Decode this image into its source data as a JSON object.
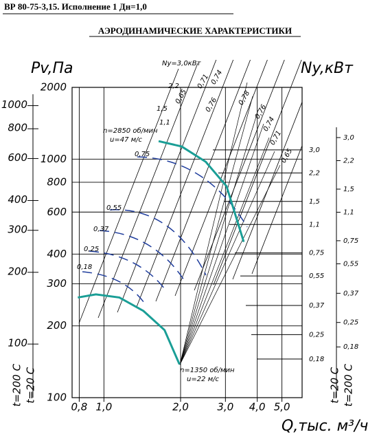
{
  "header": {
    "title": "ВР 80-75-3,15. Исполнение 1 Дн=1,0",
    "subtitle": "АЭРОДИНАМИЧЕСКИЕ ХАРАКТЕРИСТИКИ"
  },
  "chart_data": {
    "type": "line",
    "x_label": "Q,тыс. м³/ч",
    "y_label": "Pv,Па",
    "y2_label": "Ny,кВт",
    "temp_labels": [
      "t=200 C",
      "t=20 C"
    ],
    "xscale": "log",
    "yscale": "log",
    "grid": true,
    "xlim": [
      0.75,
      6
    ],
    "xticks": [
      {
        "value": 0.8,
        "label": "0,8"
      },
      {
        "value": 1.0,
        "label": "1,0"
      },
      {
        "value": 2.0,
        "label": "2,0"
      },
      {
        "value": 3.0,
        "label": "3,0"
      },
      {
        "value": 4.0,
        "label": "4,0"
      },
      {
        "value": 5.0,
        "label": "5,0"
      }
    ],
    "ylim": [
      100,
      2000
    ],
    "yticks": [
      100,
      200,
      300,
      400,
      600,
      800,
      1000,
      2000
    ],
    "y2lim": [
      59.6,
      1193
    ],
    "y2ticks": [
      100,
      200,
      300,
      400,
      600,
      800,
      1000
    ],
    "nylim": [
      0.107,
      6.96
    ],
    "ny2lim": [
      0.091,
      5.89
    ],
    "nyticks": [
      {
        "value": 3.0,
        "label": "3,0"
      },
      {
        "value": 2.2,
        "label": "2,2"
      },
      {
        "value": 1.5,
        "label": "1,5"
      },
      {
        "value": 1.1,
        "label": "1,1"
      },
      {
        "value": 0.75,
        "label": "0,75"
      },
      {
        "value": 0.55,
        "label": "0,55"
      },
      {
        "value": 0.37,
        "label": "0,37"
      },
      {
        "value": 0.25,
        "label": "0,25"
      },
      {
        "value": 0.18,
        "label": "0,18"
      }
    ],
    "ny2ticks": [
      {
        "value": 3.0,
        "label": "3,0"
      },
      {
        "value": 2.2,
        "label": "2,2"
      },
      {
        "value": 1.5,
        "label": "1,5"
      },
      {
        "value": 1.1,
        "label": "1,1"
      },
      {
        "value": 0.75,
        "label": "0,75"
      },
      {
        "value": 0.55,
        "label": "0,55"
      },
      {
        "value": 0.37,
        "label": "0,37"
      },
      {
        "value": 0.25,
        "label": "0,25"
      },
      {
        "value": 0.18,
        "label": "0,18"
      }
    ],
    "series": [
      {
        "name": "n=2850 об/мин",
        "note": "u=47 м/с",
        "color": "#1a9e96",
        "x": [
          1.64,
          2.02,
          2.51,
          3.03,
          3.54
        ],
        "values": [
          1190,
          1130,
          975,
          770,
          450
        ]
      },
      {
        "name": "n=1350 об/мин",
        "note": "u=22 м/с",
        "color": "#1a9e96",
        "x": [
          0.79,
          0.93,
          1.15,
          1.43,
          1.73,
          1.98
        ],
        "values": [
          263,
          271,
          263,
          231,
          192,
          138
        ]
      }
    ],
    "power_line_labels": [
      "0,18",
      "0,25",
      "0,37",
      "0,55",
      "0,75",
      "1,1",
      "1,5",
      "2,2"
    ],
    "efficiency_labels": [
      "0,65",
      "0,71",
      "0,74",
      "0,76",
      "0,78",
      "0,76",
      "0,74",
      "0,71",
      "0,65"
    ],
    "power_annotation": "Ny=3,0кВт"
  }
}
